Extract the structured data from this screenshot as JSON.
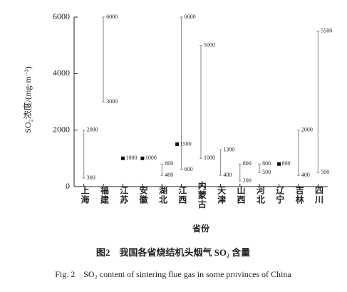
{
  "chart_data": {
    "type": "range",
    "ylabel": "SO₂浓度/(mg·m⁻³)",
    "xlabel": "省份",
    "caption_cn": "图2　我国各省烧结机头烟气 SO₂ 含量",
    "caption_en": "Fig. 2　SO₂ content of sintering flue gas in some provinces of China",
    "categories": [
      "上海",
      "福建",
      "江苏",
      "安徽",
      "湖北",
      "江西",
      "内蒙古",
      "天津",
      "山西",
      "河北",
      "辽宁",
      "吉林",
      "四川"
    ],
    "series": [
      {
        "name": "min",
        "color": "#888888",
        "values": [
          300,
          3000,
          null,
          null,
          400,
          600,
          1000,
          400,
          200,
          500,
          null,
          400,
          500
        ]
      },
      {
        "name": "max",
        "color": "#888888",
        "values": [
          2000,
          6000,
          null,
          null,
          800,
          6000,
          5000,
          1300,
          800,
          800,
          null,
          2000,
          5500
        ]
      },
      {
        "name": "point",
        "color": "#111111",
        "values": [
          null,
          null,
          1000,
          1000,
          null,
          1500,
          null,
          null,
          null,
          null,
          800,
          null,
          null
        ]
      }
    ],
    "ylim": [
      0,
      6000
    ],
    "yticks": [
      0,
      2000,
      4000,
      6000
    ]
  }
}
